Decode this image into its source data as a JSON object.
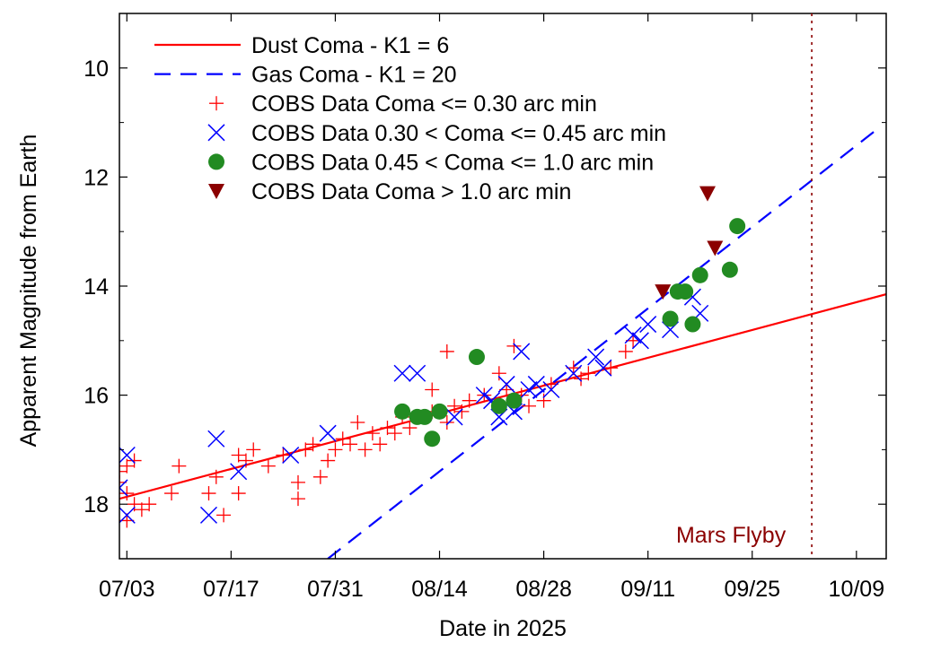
{
  "chart_data": {
    "type": "scatter",
    "xlabel": "Date in 2025",
    "ylabel": "Apparent Magnitude from Earth",
    "x_ticks": [
      {
        "date": "2025-07-03",
        "label": "07/03"
      },
      {
        "date": "2025-07-17",
        "label": "07/17"
      },
      {
        "date": "2025-07-31",
        "label": "07/31"
      },
      {
        "date": "2025-08-14",
        "label": "08/14"
      },
      {
        "date": "2025-08-28",
        "label": "08/28"
      },
      {
        "date": "2025-09-11",
        "label": "09/11"
      },
      {
        "date": "2025-09-25",
        "label": "09/25"
      },
      {
        "date": "2025-10-09",
        "label": "10/09"
      }
    ],
    "y_ticks": [
      10,
      12,
      14,
      16,
      18
    ],
    "xlim": [
      "2025-07-02",
      "2025-10-13"
    ],
    "ylim": [
      19,
      9.0
    ],
    "y_inverted": true,
    "grid": false,
    "legend_position": "top-left",
    "colors": {
      "dust": "#ff0000",
      "gas": "#0000ff",
      "small": "#ff0000",
      "medium": "#0000ff",
      "large": "#228b22",
      "xlarge": "#8b0000",
      "annotation": "#8b0000"
    },
    "lines": [
      {
        "name": "Dust Coma - K1 = 6",
        "style": "solid",
        "color": "#ff0000",
        "points": [
          [
            "2025-07-02",
            17.9
          ],
          [
            "2025-10-13",
            14.15
          ]
        ]
      },
      {
        "name": "Gas Coma - K1 = 20",
        "style": "dashed",
        "color": "#0000ff",
        "points": [
          [
            "2025-07-30",
            19.0
          ],
          [
            "2025-10-12",
            11.1
          ]
        ]
      }
    ],
    "series": [
      {
        "name": "COBS Data Coma <= 0.30 arc min",
        "marker": "plus",
        "color": "#ff0000",
        "points": [
          [
            "2025-07-02",
            17.6
          ],
          [
            "2025-07-02",
            17.4
          ],
          [
            "2025-07-03",
            17.8
          ],
          [
            "2025-07-03",
            18.3
          ],
          [
            "2025-07-03",
            17.3
          ],
          [
            "2025-07-04",
            18.0
          ],
          [
            "2025-07-04",
            17.2
          ],
          [
            "2025-07-05",
            18.1
          ],
          [
            "2025-07-06",
            18.0
          ],
          [
            "2025-07-09",
            17.8
          ],
          [
            "2025-07-10",
            17.3
          ],
          [
            "2025-07-14",
            17.8
          ],
          [
            "2025-07-15",
            17.5
          ],
          [
            "2025-07-16",
            18.2
          ],
          [
            "2025-07-18",
            17.8
          ],
          [
            "2025-07-18",
            17.1
          ],
          [
            "2025-07-19",
            17.2
          ],
          [
            "2025-07-20",
            17.0
          ],
          [
            "2025-07-22",
            17.3
          ],
          [
            "2025-07-24",
            17.1
          ],
          [
            "2025-07-26",
            17.6
          ],
          [
            "2025-07-26",
            17.9
          ],
          [
            "2025-07-27",
            17.0
          ],
          [
            "2025-07-28",
            16.9
          ],
          [
            "2025-07-29",
            17.5
          ],
          [
            "2025-07-30",
            17.2
          ],
          [
            "2025-07-31",
            17.0
          ],
          [
            "2025-08-01",
            16.8
          ],
          [
            "2025-08-02",
            16.9
          ],
          [
            "2025-08-03",
            16.5
          ],
          [
            "2025-08-04",
            17.0
          ],
          [
            "2025-08-05",
            16.7
          ],
          [
            "2025-08-06",
            16.9
          ],
          [
            "2025-08-07",
            16.6
          ],
          [
            "2025-08-08",
            16.7
          ],
          [
            "2025-08-09",
            16.4
          ],
          [
            "2025-08-10",
            16.6
          ],
          [
            "2025-08-11",
            16.4
          ],
          [
            "2025-08-13",
            16.3
          ],
          [
            "2025-08-13",
            15.9
          ],
          [
            "2025-08-15",
            15.2
          ],
          [
            "2025-08-15",
            16.5
          ],
          [
            "2025-08-16",
            16.2
          ],
          [
            "2025-08-17",
            16.3
          ],
          [
            "2025-08-18",
            16.1
          ],
          [
            "2025-08-20",
            16.0
          ],
          [
            "2025-08-22",
            15.6
          ],
          [
            "2025-08-23",
            15.9
          ],
          [
            "2025-08-24",
            15.1
          ],
          [
            "2025-08-25",
            16.0
          ],
          [
            "2025-08-26",
            16.2
          ],
          [
            "2025-08-28",
            16.1
          ],
          [
            "2025-08-29",
            15.8
          ],
          [
            "2025-09-01",
            15.5
          ],
          [
            "2025-09-02",
            15.7
          ],
          [
            "2025-09-03",
            15.6
          ],
          [
            "2025-09-06",
            15.5
          ],
          [
            "2025-09-08",
            15.2
          ],
          [
            "2025-09-09",
            15.0
          ]
        ]
      },
      {
        "name": "COBS Data 0.30 < Coma <= 0.45 arc min",
        "marker": "cross",
        "color": "#0000ff",
        "points": [
          [
            "2025-07-02",
            17.7
          ],
          [
            "2025-07-03",
            17.1
          ],
          [
            "2025-07-03",
            18.2
          ],
          [
            "2025-07-14",
            18.2
          ],
          [
            "2025-07-15",
            16.8
          ],
          [
            "2025-07-18",
            17.4
          ],
          [
            "2025-07-25",
            17.1
          ],
          [
            "2025-07-30",
            16.7
          ],
          [
            "2025-08-09",
            15.6
          ],
          [
            "2025-08-11",
            15.6
          ],
          [
            "2025-08-16",
            16.4
          ],
          [
            "2025-08-20",
            16.0
          ],
          [
            "2025-08-21",
            16.1
          ],
          [
            "2025-08-22",
            16.4
          ],
          [
            "2025-08-23",
            15.8
          ],
          [
            "2025-08-24",
            16.3
          ],
          [
            "2025-08-25",
            15.2
          ],
          [
            "2025-08-26",
            15.9
          ],
          [
            "2025-08-27",
            15.8
          ],
          [
            "2025-08-29",
            15.9
          ],
          [
            "2025-09-01",
            15.6
          ],
          [
            "2025-09-04",
            15.3
          ],
          [
            "2025-09-05",
            15.5
          ],
          [
            "2025-09-09",
            14.9
          ],
          [
            "2025-09-10",
            15.0
          ],
          [
            "2025-09-11",
            14.7
          ],
          [
            "2025-09-14",
            14.8
          ],
          [
            "2025-09-17",
            14.2
          ],
          [
            "2025-09-18",
            14.5
          ]
        ]
      },
      {
        "name": "COBS Data 0.45 < Coma <= 1.0 arc min",
        "marker": "circle",
        "color": "#228b22",
        "points": [
          [
            "2025-08-09",
            16.3
          ],
          [
            "2025-08-11",
            16.4
          ],
          [
            "2025-08-12",
            16.4
          ],
          [
            "2025-08-13",
            16.8
          ],
          [
            "2025-08-14",
            16.3
          ],
          [
            "2025-08-19",
            15.3
          ],
          [
            "2025-08-22",
            16.2
          ],
          [
            "2025-08-24",
            16.1
          ],
          [
            "2025-09-14",
            14.6
          ],
          [
            "2025-09-15",
            14.1
          ],
          [
            "2025-09-16",
            14.1
          ],
          [
            "2025-09-17",
            14.7
          ],
          [
            "2025-09-18",
            13.8
          ],
          [
            "2025-09-22",
            13.7
          ],
          [
            "2025-09-23",
            12.9
          ]
        ]
      },
      {
        "name": "COBS Data Coma > 1.0 arc min",
        "marker": "triangle-down",
        "color": "#8b0000",
        "points": [
          [
            "2025-09-13",
            14.1
          ],
          [
            "2025-09-19",
            12.3
          ],
          [
            "2025-09-20",
            13.3
          ]
        ]
      }
    ],
    "annotations": [
      {
        "type": "vline",
        "date": "2025-10-03",
        "style": "dotted",
        "color": "#8b0000",
        "label": "Mars Flyby"
      }
    ]
  }
}
